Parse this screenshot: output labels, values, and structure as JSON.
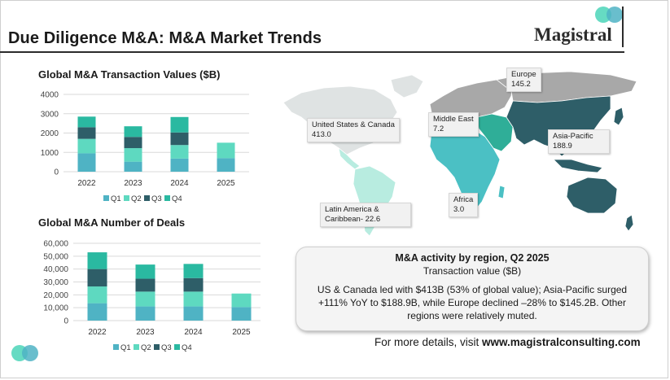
{
  "header": {
    "title": "Due Diligence M&A: M&A Market Trends",
    "logo_text": "Magistral"
  },
  "colors": {
    "q1": "#4fb3c4",
    "q2": "#5ed9c0",
    "q3": "#2e5e68",
    "q4": "#2ab9a1",
    "map_gray": "#a8a8a8",
    "map_na": "#dfe3e3",
    "map_la": "#b8ece0",
    "map_africa": "#4bc0c4",
    "map_me": "#2fae98",
    "map_apac": "#2e5e68"
  },
  "chart_data": [
    {
      "type": "bar",
      "stacked": true,
      "title": "Global M&A Transaction Values ($B)",
      "categories": [
        "2022",
        "2023",
        "2024",
        "2025"
      ],
      "series": [
        {
          "name": "Q1",
          "values": [
            950,
            520,
            680,
            700
          ]
        },
        {
          "name": "Q2",
          "values": [
            750,
            700,
            700,
            800
          ]
        },
        {
          "name": "Q3",
          "values": [
            600,
            580,
            650,
            0
          ]
        },
        {
          "name": "Q4",
          "values": [
            550,
            550,
            800,
            0
          ]
        }
      ],
      "yticks": [
        "0",
        "1000",
        "2000",
        "3000",
        "4000"
      ],
      "ylim": [
        0,
        4000
      ]
    },
    {
      "type": "bar",
      "stacked": true,
      "title": "Global M&A Number of Deals",
      "categories": [
        "2022",
        "2023",
        "2024",
        "2025"
      ],
      "series": [
        {
          "name": "Q1",
          "values": [
            13500,
            11000,
            11000,
            10500
          ]
        },
        {
          "name": "Q2",
          "values": [
            13000,
            11500,
            11500,
            10500
          ]
        },
        {
          "name": "Q3",
          "values": [
            13500,
            10000,
            10500,
            0
          ]
        },
        {
          "name": "Q4",
          "values": [
            13000,
            11000,
            11000,
            0
          ]
        }
      ],
      "yticks": [
        "0",
        "10,000",
        "20,000",
        "30,000",
        "40,000",
        "50,000",
        "60,000"
      ],
      "ylim": [
        0,
        60000
      ]
    }
  ],
  "map": {
    "callouts": [
      {
        "name": "callout-europe",
        "label": "Europe",
        "value": "145.2"
      },
      {
        "name": "callout-us-canada",
        "label": "United States & Canada",
        "value": "413.0"
      },
      {
        "name": "callout-middle-east",
        "label": "Middle East",
        "value": "7.2"
      },
      {
        "name": "callout-asia-pacific",
        "label": "Asia-Pacific",
        "value": "188.9"
      },
      {
        "name": "callout-latin-america",
        "label": "Latin America &",
        "value": "Caribbean- 22.6"
      },
      {
        "name": "callout-africa",
        "label": "Africa",
        "value": "3.0"
      }
    ]
  },
  "infobox": {
    "title": "M&A activity by region, Q2 2025",
    "subtitle": "Transaction value ($B)",
    "body": "US & Canada led with $413B (53% of global value); Asia-Pacific surged +111% YoY to $188.9B, while Europe declined –28% to $145.2B. Other regions were relatively muted."
  },
  "footer": {
    "prefix": "For more details, visit ",
    "url": "www.magistralconsulting.com"
  }
}
